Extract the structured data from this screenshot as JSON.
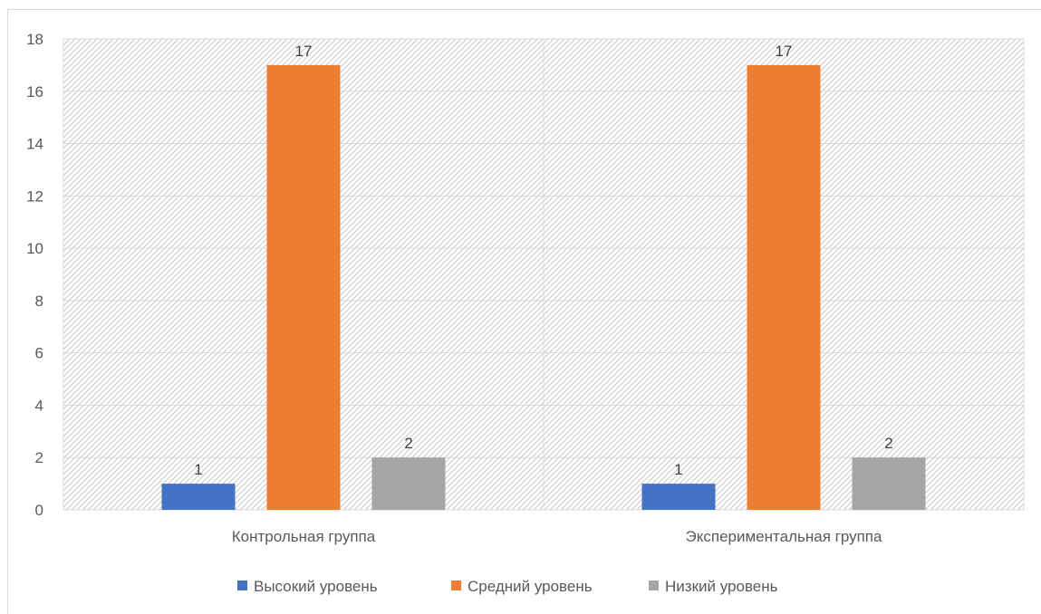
{
  "chart_data": {
    "type": "bar",
    "title": "",
    "xlabel": "",
    "ylabel": "",
    "categories": [
      "Контрольная группа",
      "Экспериментальная группа"
    ],
    "series": [
      {
        "name": "Высокий уровень",
        "values": [
          1,
          1
        ],
        "color": "#4472c4"
      },
      {
        "name": "Средний уровень",
        "values": [
          17,
          17
        ],
        "color": "#ed7d31"
      },
      {
        "name": "Низкий уровень",
        "values": [
          2,
          2
        ],
        "color": "#a5a5a5"
      }
    ],
    "ylim": [
      0,
      18
    ],
    "yticks": [
      0,
      2,
      4,
      6,
      8,
      10,
      12,
      14,
      16,
      18
    ],
    "data_labels": true,
    "grid": true,
    "legend_position": "bottom"
  }
}
